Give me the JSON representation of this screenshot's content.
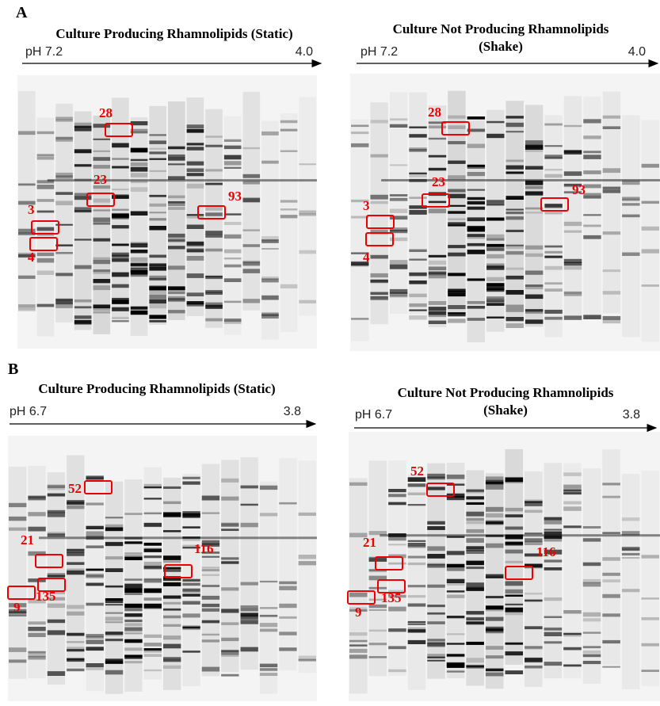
{
  "panels": [
    {
      "label": "A",
      "gels": [
        {
          "title": [
            "Culture Producing Rhamnolipids (Static)"
          ],
          "ph_start": "pH 7.2",
          "ph_end": "4.0",
          "bands": [
            "28",
            "23",
            "93",
            "3",
            "4"
          ]
        },
        {
          "title": [
            "Culture Not Producing Rhamnolipids",
            "(Shake)"
          ],
          "ph_start": "pH 7.2",
          "ph_end": "4.0",
          "bands": [
            "28",
            "23",
            "93",
            "3",
            "4"
          ]
        }
      ]
    },
    {
      "label": "B",
      "gels": [
        {
          "title": [
            "Culture Producing Rhamnolipids (Static)"
          ],
          "ph_start": "pH 6.7",
          "ph_end": "3.8",
          "bands": [
            "52",
            "21",
            "116",
            "135",
            "9"
          ]
        },
        {
          "title": [
            "Culture Not Producing Rhamnolipids",
            "(Shake)"
          ],
          "ph_start": "pH 6.7",
          "ph_end": "3.8",
          "bands": [
            "52",
            "21",
            "116",
            "135",
            "9"
          ]
        }
      ]
    }
  ]
}
